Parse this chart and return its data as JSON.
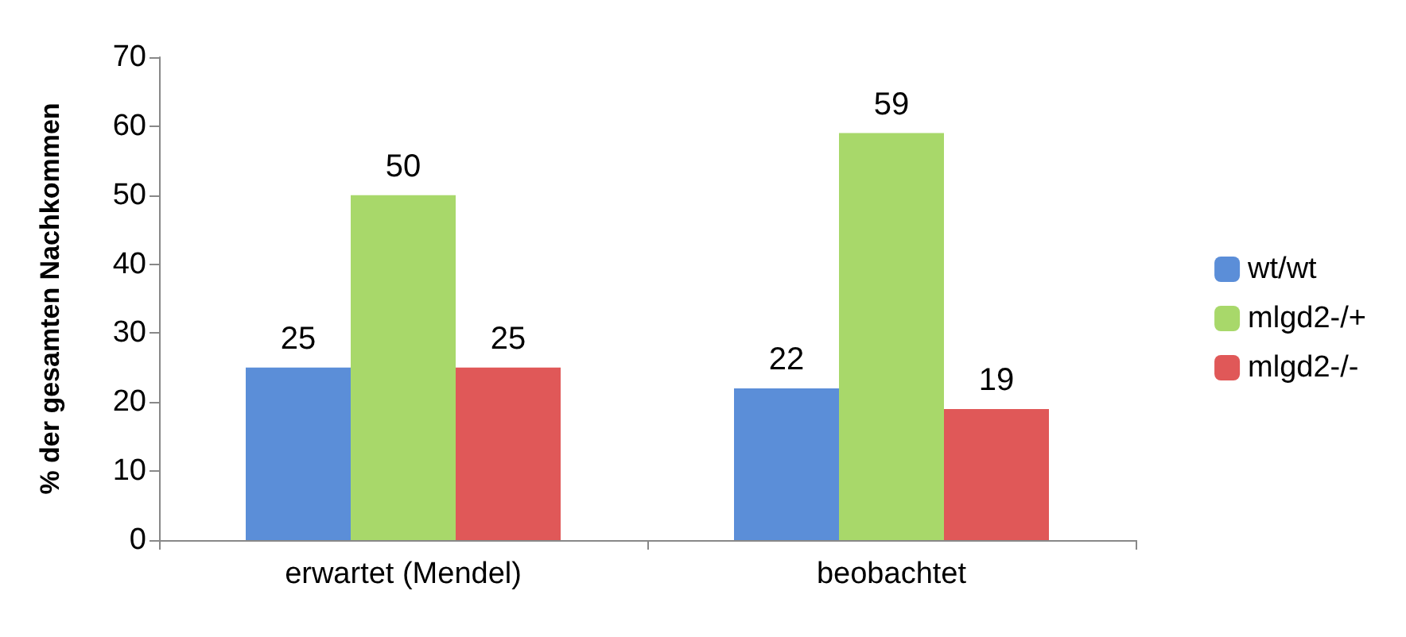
{
  "chart_data": {
    "type": "bar",
    "ylabel": "% der gesamten Nachkommen",
    "categories": [
      "erwartet (Mendel)",
      "beobachtet"
    ],
    "series": [
      {
        "name": "wt/wt",
        "color": "#5b8ed8",
        "values": [
          25,
          22
        ]
      },
      {
        "name": "mlgd2-/+",
        "color": "#a8d86a",
        "values": [
          50,
          59
        ]
      },
      {
        "name": "mlgd2-/-",
        "color": "#e05858",
        "values": [
          25,
          19
        ]
      }
    ],
    "ylim": [
      0,
      70
    ],
    "yticks": [
      0,
      10,
      20,
      30,
      40,
      50,
      60,
      70
    ],
    "grid": false,
    "legend": "right",
    "data_labels": true
  }
}
